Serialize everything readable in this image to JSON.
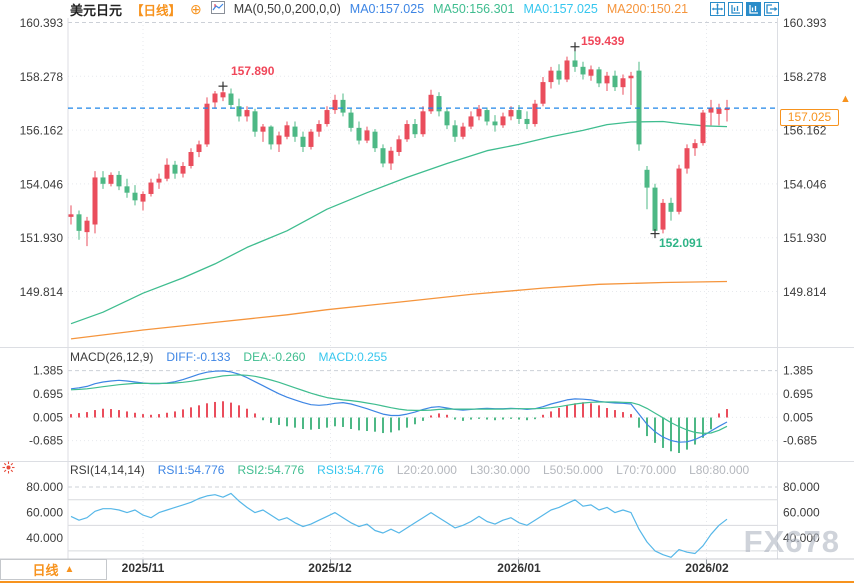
{
  "header": {
    "title": "美元日元",
    "period_tag": "【日线】",
    "ma_settings_label": "MA(0,50,0,200,0,0)",
    "ma_values": [
      {
        "label": "MA0:157.025",
        "color": "#3d85e4"
      },
      {
        "label": "MA50:156.301",
        "color": "#3fbd8f"
      },
      {
        "label": "MA0:157.025",
        "color": "#36c6ee"
      },
      {
        "label": "MA200:150.21",
        "color": "#f5953d"
      }
    ]
  },
  "price_tag": {
    "value": "157.025"
  },
  "annotations": {
    "high1": "157.890",
    "high2": "159.439",
    "low1": "152.091"
  },
  "macd_header": {
    "label": "MACD(26,12,9)",
    "diff": "DIFF:-0.133",
    "dea": "DEA:-0.260",
    "macd": "MACD:0.255"
  },
  "rsi_header": {
    "label": "RSI(14,14,14)",
    "rsi1": "RSI1:54.776",
    "rsi2": "RSI2:54.776",
    "rsi3": "RSI3:54.776",
    "levels": [
      "L20:20.000",
      "L30:30.000",
      "L50:50.000",
      "L70:70.000",
      "L80:80.000"
    ]
  },
  "axes": {
    "price_labels": [
      "160.393",
      "158.278",
      "156.162",
      "154.046",
      "151.930",
      "149.814"
    ],
    "macd_labels": [
      "1.385",
      "0.695",
      "0.005",
      "-0.685"
    ],
    "rsi_labels": [
      "80.000",
      "60.000",
      "40.000"
    ],
    "date_labels": [
      "2025/11",
      "2025/12",
      "2026/01",
      "2026/02"
    ]
  },
  "bottom_bar": {
    "period_button": "日线",
    "arrow": "▲"
  },
  "watermark": "FX678",
  "colors": {
    "up": "#ea4d5c",
    "down": "#4db885",
    "ma50": "#3fbd8f",
    "ma200": "#f5953d",
    "diff": "#3d85e4",
    "dea": "#3fbd8f",
    "rsi_line": "#56b7e8",
    "accent_orange": "#f7931e",
    "current_price_line": "#1f86e8",
    "annotation_red": "#f0475a",
    "annotation_green": "#2fb487",
    "toolbar_blue": "#2a8cc9",
    "grid_dotted": "#e7e9ed",
    "grid_dashed": "#ccd0d7",
    "pane_border": "#dcdee3",
    "axis_text": "#3c3c3c"
  },
  "chart_data": {
    "type": "candlestick",
    "symbol": "美元日元 (USD/JPY)",
    "interval": "日线 (daily)",
    "title": "美元日元【日线】",
    "x_axis_labels": [
      "2025/11",
      "2025/12",
      "2026/01",
      "2026/02"
    ],
    "price_axis": [
      160.393,
      158.278,
      156.162,
      154.046,
      151.93,
      149.814
    ],
    "current_price": 157.025,
    "marked_high_1": 157.89,
    "marked_high_2": 159.439,
    "marked_low": 152.091,
    "high1_index": 19,
    "high2_index": 63,
    "low_index": 73,
    "candles": [
      [
        152.75,
        153.2,
        152.45,
        152.85
      ],
      [
        152.85,
        153.0,
        151.85,
        152.2
      ],
      [
        152.15,
        152.75,
        151.6,
        152.6
      ],
      [
        152.45,
        154.55,
        152.1,
        154.3
      ],
      [
        154.3,
        154.55,
        153.85,
        154.05
      ],
      [
        154.05,
        154.5,
        153.95,
        154.4
      ],
      [
        154.4,
        154.55,
        153.8,
        153.95
      ],
      [
        153.95,
        154.25,
        153.5,
        153.7
      ],
      [
        153.7,
        154.0,
        153.2,
        153.4
      ],
      [
        153.35,
        153.75,
        153.0,
        153.65
      ],
      [
        153.65,
        154.25,
        153.55,
        154.1
      ],
      [
        154.1,
        154.45,
        153.85,
        154.25
      ],
      [
        154.25,
        155.05,
        154.15,
        154.8
      ],
      [
        154.8,
        154.95,
        154.25,
        154.45
      ],
      [
        154.45,
        154.9,
        154.3,
        154.75
      ],
      [
        154.75,
        155.45,
        154.65,
        155.3
      ],
      [
        155.3,
        155.75,
        155.1,
        155.6
      ],
      [
        155.6,
        157.45,
        155.5,
        157.2
      ],
      [
        157.25,
        157.7,
        157.0,
        157.6
      ],
      [
        157.45,
        157.89,
        157.3,
        157.65
      ],
      [
        157.6,
        157.8,
        157.0,
        157.15
      ],
      [
        157.1,
        157.4,
        156.5,
        156.7
      ],
      [
        156.7,
        157.1,
        156.5,
        156.95
      ],
      [
        156.9,
        157.0,
        155.9,
        156.1
      ],
      [
        156.1,
        156.4,
        155.7,
        156.3
      ],
      [
        156.3,
        156.35,
        155.4,
        155.6
      ],
      [
        155.6,
        156.1,
        155.3,
        155.95
      ],
      [
        155.9,
        156.5,
        155.8,
        156.35
      ],
      [
        156.3,
        156.5,
        155.7,
        155.9
      ],
      [
        155.9,
        156.1,
        155.3,
        155.5
      ],
      [
        155.5,
        156.2,
        155.4,
        156.1
      ],
      [
        156.1,
        156.55,
        155.9,
        156.4
      ],
      [
        156.4,
        157.1,
        156.3,
        156.95
      ],
      [
        156.95,
        157.55,
        156.8,
        157.35
      ],
      [
        157.35,
        157.6,
        156.7,
        156.85
      ],
      [
        156.85,
        157.0,
        156.1,
        156.25
      ],
      [
        156.25,
        156.5,
        155.6,
        155.75
      ],
      [
        155.75,
        156.3,
        155.65,
        156.15
      ],
      [
        156.1,
        156.2,
        155.3,
        155.45
      ],
      [
        155.45,
        155.6,
        154.7,
        154.85
      ],
      [
        154.85,
        155.5,
        154.6,
        155.35
      ],
      [
        155.3,
        155.95,
        155.15,
        155.8
      ],
      [
        155.8,
        156.55,
        155.7,
        156.4
      ],
      [
        156.4,
        156.6,
        155.85,
        156.0
      ],
      [
        156.0,
        157.1,
        155.9,
        156.9
      ],
      [
        156.9,
        157.75,
        156.8,
        157.55
      ],
      [
        157.5,
        157.65,
        156.7,
        156.9
      ],
      [
        156.9,
        157.05,
        156.2,
        156.35
      ],
      [
        156.35,
        156.55,
        155.7,
        155.9
      ],
      [
        155.9,
        156.45,
        155.8,
        156.3
      ],
      [
        156.3,
        156.9,
        156.2,
        156.7
      ],
      [
        156.7,
        157.15,
        156.55,
        157.0
      ],
      [
        156.95,
        157.05,
        156.35,
        156.5
      ],
      [
        156.5,
        156.75,
        156.1,
        156.35
      ],
      [
        156.35,
        156.85,
        156.25,
        156.7
      ],
      [
        156.7,
        157.1,
        156.55,
        156.95
      ],
      [
        156.95,
        157.15,
        156.4,
        156.6
      ],
      [
        156.6,
        156.9,
        156.2,
        156.4
      ],
      [
        156.4,
        157.35,
        156.3,
        157.2
      ],
      [
        157.2,
        158.25,
        157.1,
        158.05
      ],
      [
        158.05,
        158.65,
        157.8,
        158.5
      ],
      [
        158.5,
        158.75,
        157.95,
        158.15
      ],
      [
        158.15,
        159.05,
        158.05,
        158.9
      ],
      [
        158.9,
        159.439,
        158.45,
        158.65
      ],
      [
        158.65,
        158.85,
        158.15,
        158.35
      ],
      [
        158.3,
        158.7,
        158.1,
        158.55
      ],
      [
        158.55,
        158.65,
        157.85,
        158.0
      ],
      [
        158.0,
        158.45,
        157.7,
        158.3
      ],
      [
        158.3,
        158.5,
        157.7,
        157.85
      ],
      [
        157.85,
        158.35,
        157.55,
        158.2
      ],
      [
        158.2,
        158.45,
        157.15,
        158.3
      ],
      [
        158.5,
        158.85,
        155.35,
        155.6
      ],
      [
        154.6,
        154.75,
        153.05,
        153.9
      ],
      [
        153.9,
        154.05,
        152.091,
        152.2
      ],
      [
        152.25,
        153.45,
        152.1,
        153.3
      ],
      [
        153.3,
        153.5,
        152.6,
        152.95
      ],
      [
        152.95,
        154.8,
        152.85,
        154.65
      ],
      [
        154.65,
        155.6,
        154.45,
        155.45
      ],
      [
        155.45,
        155.8,
        155.15,
        155.65
      ],
      [
        155.65,
        156.95,
        155.55,
        156.85
      ],
      [
        156.85,
        157.35,
        156.35,
        157.05
      ],
      [
        156.8,
        157.2,
        156.35,
        157.0
      ],
      [
        156.95,
        157.35,
        156.5,
        157.025
      ]
    ],
    "ma50_points": [
      [
        0,
        148.55
      ],
      [
        4,
        149.0
      ],
      [
        9,
        149.75
      ],
      [
        14,
        150.35
      ],
      [
        18,
        150.9
      ],
      [
        22,
        151.55
      ],
      [
        27,
        152.2
      ],
      [
        32,
        153.05
      ],
      [
        37,
        153.7
      ],
      [
        42,
        154.3
      ],
      [
        47,
        154.85
      ],
      [
        52,
        155.35
      ],
      [
        56,
        155.6
      ],
      [
        60,
        155.9
      ],
      [
        64,
        156.15
      ],
      [
        67,
        156.38
      ],
      [
        70,
        156.48
      ],
      [
        74,
        156.5
      ],
      [
        76,
        156.42
      ],
      [
        79,
        156.33
      ],
      [
        82,
        156.301
      ]
    ],
    "ma200_points": [
      [
        0,
        147.95
      ],
      [
        9,
        148.3
      ],
      [
        18,
        148.6
      ],
      [
        27,
        148.9
      ],
      [
        32,
        149.1
      ],
      [
        41,
        149.4
      ],
      [
        50,
        149.7
      ],
      [
        59,
        149.95
      ],
      [
        66,
        150.1
      ],
      [
        74,
        150.17
      ],
      [
        82,
        150.21
      ]
    ],
    "macd": {
      "params": [
        26,
        12,
        9
      ],
      "diff_last": -0.133,
      "dea_last": -0.26,
      "macd_last": 0.255,
      "axis": [
        1.385,
        0.695,
        0.005,
        -0.685
      ],
      "diff": [
        0.85,
        0.88,
        0.92,
        1.0,
        1.05,
        1.08,
        1.1,
        1.08,
        1.05,
        1.02,
        1.0,
        1.0,
        1.02,
        1.06,
        1.12,
        1.2,
        1.28,
        1.34,
        1.37,
        1.38,
        1.35,
        1.28,
        1.18,
        1.06,
        0.94,
        0.82,
        0.7,
        0.6,
        0.52,
        0.44,
        0.38,
        0.36,
        0.38,
        0.42,
        0.44,
        0.4,
        0.33,
        0.26,
        0.18,
        0.1,
        0.06,
        0.06,
        0.1,
        0.16,
        0.24,
        0.3,
        0.32,
        0.28,
        0.24,
        0.22,
        0.24,
        0.26,
        0.27,
        0.26,
        0.26,
        0.27,
        0.26,
        0.24,
        0.26,
        0.32,
        0.4,
        0.46,
        0.52,
        0.55,
        0.54,
        0.52,
        0.48,
        0.45,
        0.43,
        0.42,
        0.4,
        0.1,
        -0.2,
        -0.42,
        -0.58,
        -0.68,
        -0.73,
        -0.72,
        -0.65,
        -0.54,
        -0.4,
        -0.26,
        -0.133
      ],
      "dea": [
        0.82,
        0.83,
        0.85,
        0.88,
        0.91,
        0.94,
        0.97,
        0.99,
        1.01,
        1.01,
        1.01,
        1.01,
        1.01,
        1.02,
        1.04,
        1.07,
        1.11,
        1.15,
        1.19,
        1.23,
        1.25,
        1.26,
        1.25,
        1.22,
        1.17,
        1.11,
        1.04,
        0.96,
        0.88,
        0.8,
        0.72,
        0.65,
        0.59,
        0.55,
        0.52,
        0.5,
        0.47,
        0.43,
        0.39,
        0.34,
        0.29,
        0.25,
        0.22,
        0.21,
        0.21,
        0.22,
        0.24,
        0.25,
        0.25,
        0.25,
        0.25,
        0.25,
        0.25,
        0.25,
        0.25,
        0.26,
        0.26,
        0.26,
        0.26,
        0.27,
        0.29,
        0.32,
        0.36,
        0.4,
        0.43,
        0.45,
        0.46,
        0.46,
        0.46,
        0.45,
        0.44,
        0.38,
        0.27,
        0.13,
        -0.01,
        -0.15,
        -0.27,
        -0.37,
        -0.44,
        -0.47,
        -0.46,
        -0.38,
        -0.26
      ],
      "hist": [
        0.1,
        0.13,
        0.16,
        0.22,
        0.26,
        0.25,
        0.22,
        0.18,
        0.14,
        0.1,
        0.08,
        0.1,
        0.14,
        0.18,
        0.24,
        0.3,
        0.36,
        0.42,
        0.46,
        0.48,
        0.44,
        0.36,
        0.26,
        0.12,
        -0.08,
        -0.16,
        -0.22,
        -0.26,
        -0.3,
        -0.34,
        -0.36,
        -0.34,
        -0.3,
        -0.26,
        -0.28,
        -0.34,
        -0.38,
        -0.4,
        -0.42,
        -0.46,
        -0.44,
        -0.38,
        -0.3,
        -0.2,
        -0.1,
        0.06,
        0.12,
        0.08,
        -0.06,
        -0.1,
        -0.06,
        -0.04,
        -0.06,
        -0.08,
        -0.06,
        -0.04,
        -0.06,
        -0.08,
        -0.05,
        0.08,
        0.18,
        0.28,
        0.36,
        0.42,
        0.45,
        0.42,
        0.36,
        0.28,
        0.22,
        0.16,
        0.1,
        -0.3,
        -0.55,
        -0.75,
        -0.9,
        -1.0,
        -1.05,
        -0.95,
        -0.8,
        -0.6,
        -0.35,
        0.12,
        0.25
      ]
    },
    "rsi": {
      "params": [
        14,
        14,
        14
      ],
      "last": 54.776,
      "axis": [
        80,
        60,
        40
      ],
      "levels": [
        20,
        30,
        50,
        70,
        80
      ],
      "values": [
        57,
        54,
        56,
        61,
        63,
        63,
        62,
        60,
        62,
        58,
        56,
        60,
        62,
        64,
        66,
        68,
        71,
        73,
        74,
        72,
        75,
        69,
        64,
        60,
        62,
        58,
        54,
        56,
        52,
        49,
        51,
        54,
        57,
        60,
        56,
        52,
        49,
        51,
        46,
        44,
        47,
        44,
        48,
        52,
        56,
        60,
        56,
        52,
        48,
        50,
        53,
        57,
        53,
        51,
        54,
        56,
        52,
        50,
        54,
        58,
        62,
        64,
        67,
        70,
        65,
        66,
        62,
        64,
        60,
        62,
        60,
        47,
        37,
        30,
        27,
        25,
        31,
        29,
        28,
        34,
        43,
        50,
        54.776
      ]
    }
  }
}
